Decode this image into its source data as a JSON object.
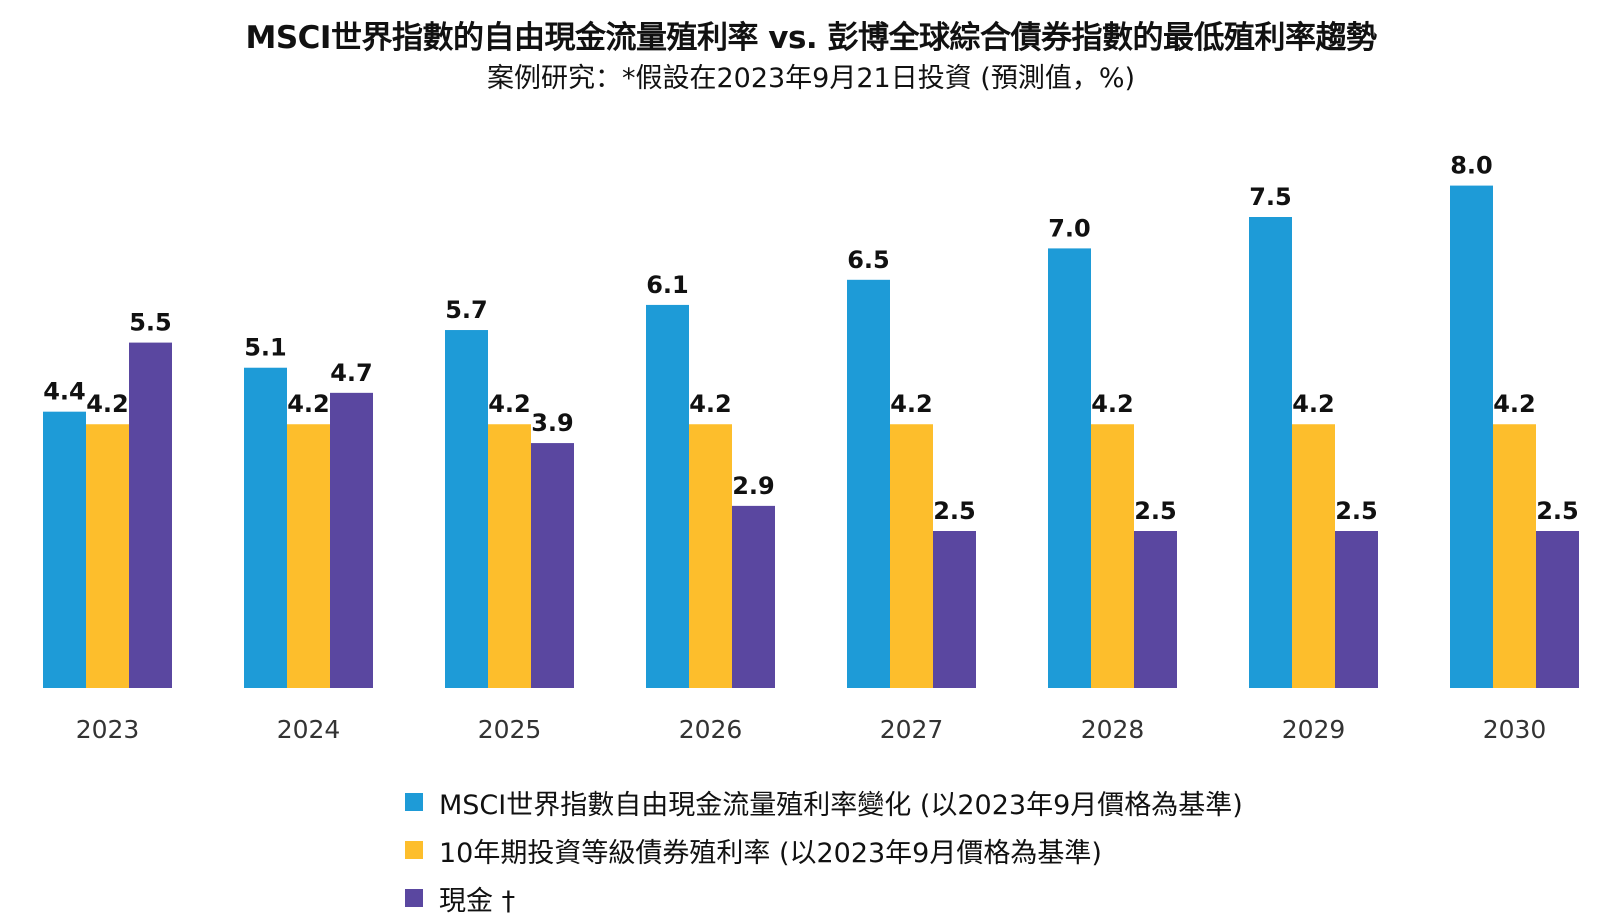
{
  "chart_data": {
    "type": "bar",
    "title": "MSCI世界指數的自由現金流量殖利率 vs. 彭博全球綜合債券指數的最低殖利率趨勢",
    "subtitle": "案例研究：*假設在2023年9月21日投資 (預測值，%)",
    "categories": [
      "2023",
      "2024",
      "2025",
      "2026",
      "2027",
      "2028",
      "2029",
      "2030"
    ],
    "series": [
      {
        "name": "MSCI世界指數自由現金流量殖利率變化 (以2023年9月價格為基準)",
        "color": "#1E9BD7",
        "values": [
          4.4,
          5.1,
          5.7,
          6.1,
          6.5,
          7.0,
          7.5,
          8.0
        ],
        "labels": [
          "4.4",
          "5.1",
          "5.7",
          "6.1",
          "6.5",
          "7.0",
          "7.5",
          "8.0"
        ]
      },
      {
        "name": "10年期投資等級債券殖利率 (以2023年9月價格為基準)",
        "color": "#FDBE2C",
        "values": [
          4.2,
          4.2,
          4.2,
          4.2,
          4.2,
          4.2,
          4.2,
          4.2
        ],
        "labels": [
          "4.2",
          "4.2",
          "4.2",
          "4.2",
          "4.2",
          "4.2",
          "4.2",
          "4.2"
        ]
      },
      {
        "name": "現金 †",
        "color": "#5A47A0",
        "values": [
          5.5,
          4.7,
          3.9,
          2.9,
          2.5,
          2.5,
          2.5,
          2.5
        ],
        "labels": [
          "5.5",
          "4.7",
          "3.9",
          "2.9",
          "2.5",
          "2.5",
          "2.5",
          "2.5"
        ]
      }
    ],
    "ylim": [
      0,
      8.0
    ],
    "grid": false,
    "legend_position": "bottom-center",
    "xlabel": "",
    "ylabel": ""
  }
}
